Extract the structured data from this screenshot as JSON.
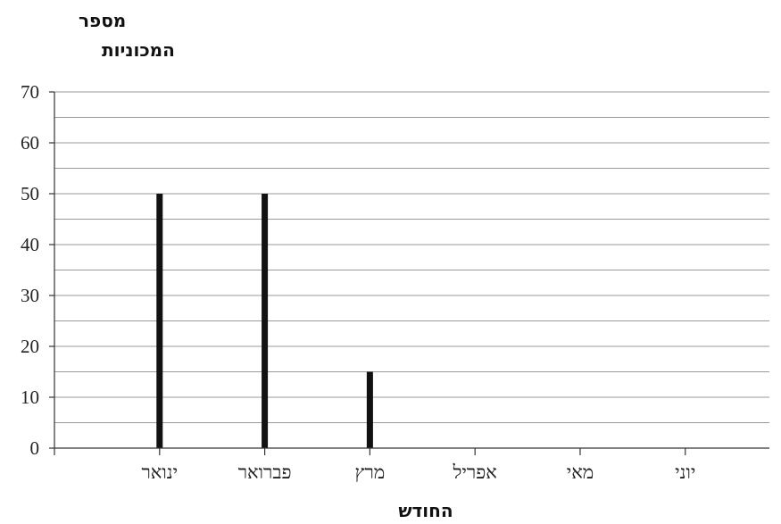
{
  "chart_data": {
    "type": "bar",
    "ylabel_lines": [
      "מספר",
      "המכוניות"
    ],
    "xlabel": "החודש",
    "categories": [
      "ינואר",
      "פברואר",
      "מרץ",
      "אפריל",
      "מאי",
      "יוני"
    ],
    "values": [
      50,
      50,
      15,
      0,
      0,
      0
    ],
    "ylim": [
      0,
      70
    ],
    "yticks": [
      "0",
      "10",
      "20",
      "30",
      "40",
      "50",
      "60",
      "70"
    ],
    "minor_gridlines": true,
    "grid": true,
    "bar_color": "#111111",
    "grid_color": "#9a9a9a"
  }
}
